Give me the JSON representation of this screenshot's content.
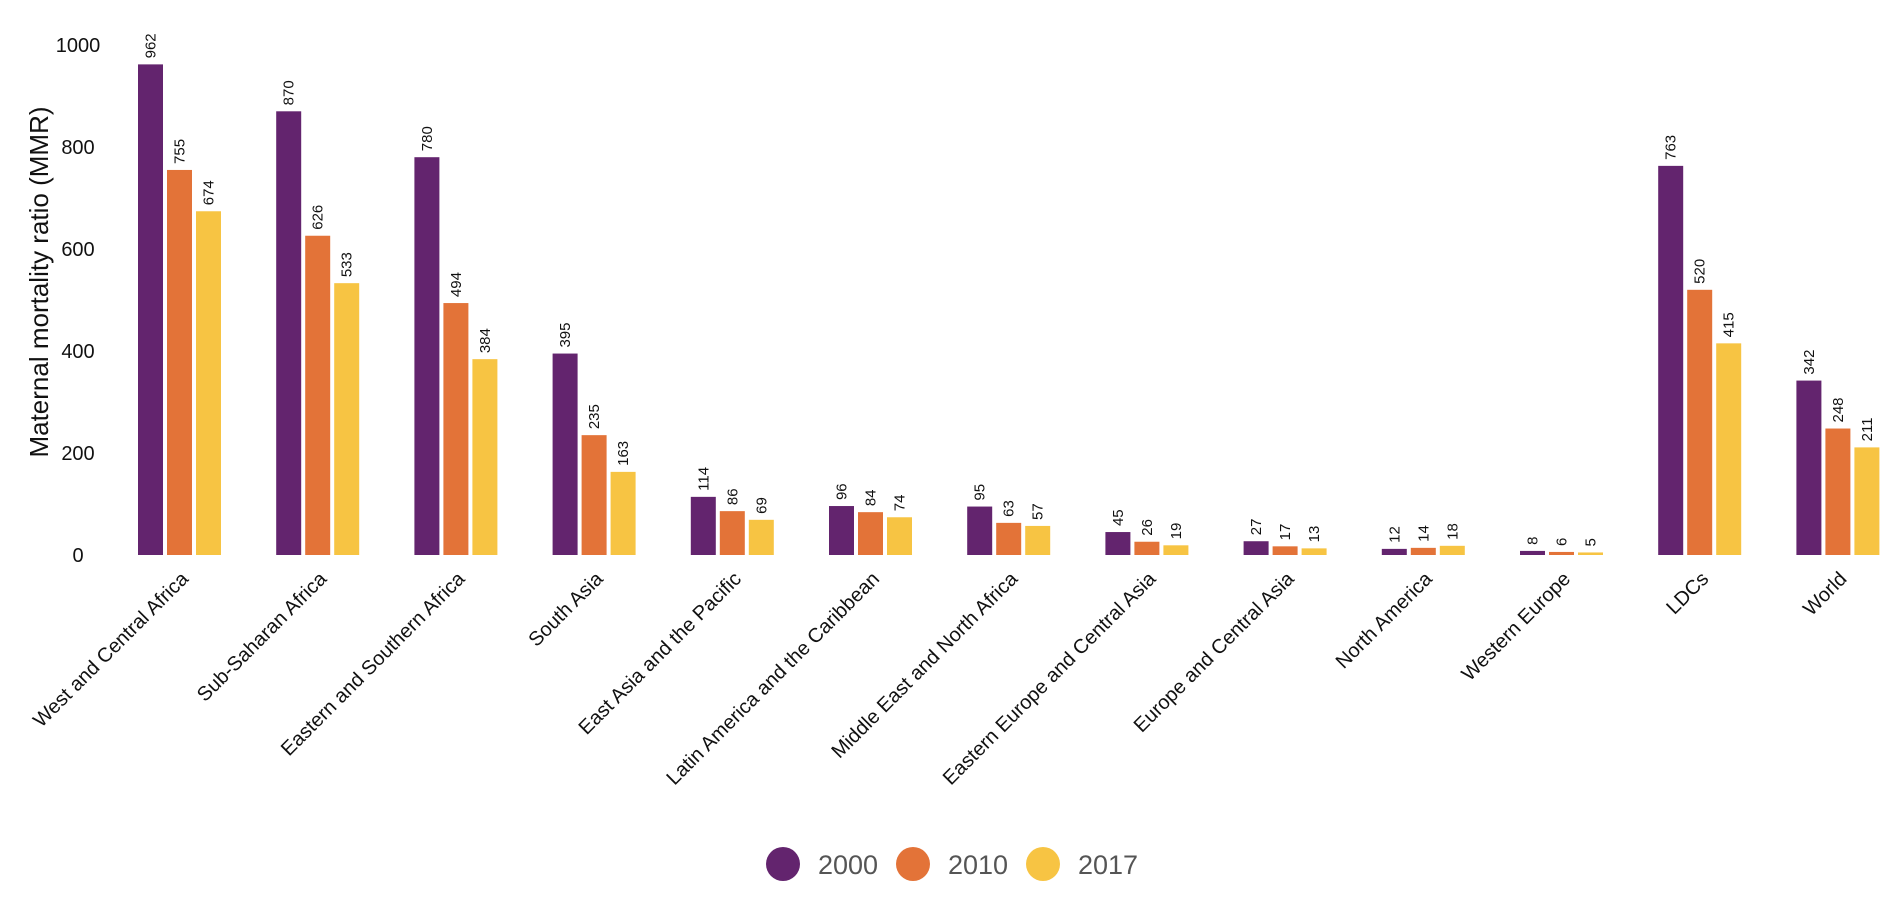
{
  "chart_data": {
    "type": "bar",
    "title": "",
    "xlabel": "",
    "ylabel": "Maternal mortality ratio (MMR)",
    "ylim": [
      0,
      1000
    ],
    "yticks": [
      0,
      200,
      400,
      600,
      800,
      1000
    ],
    "grid": false,
    "legend_position": "bottom-center",
    "categories": [
      "West and Central Africa",
      "Sub-Saharan Africa",
      "Eastern and Southern Africa",
      "South Asia",
      "East Asia and the Pacific",
      "Latin America and the Caribbean",
      "Middle East and North Africa",
      "Eastern Europe and Central Asia",
      "Europe and Central Asia",
      "North America",
      "Western Europe",
      "LDCs",
      "World"
    ],
    "series": [
      {
        "name": "2000",
        "color": "#63246e",
        "values": [
          962,
          870,
          780,
          395,
          114,
          96,
          95,
          45,
          27,
          12,
          8,
          763,
          342
        ]
      },
      {
        "name": "2010",
        "color": "#e37338",
        "values": [
          755,
          626,
          494,
          235,
          86,
          84,
          63,
          26,
          17,
          14,
          6,
          520,
          248
        ]
      },
      {
        "name": "2017",
        "color": "#f7c443",
        "values": [
          674,
          533,
          384,
          163,
          69,
          74,
          57,
          19,
          13,
          18,
          5,
          415,
          211
        ]
      }
    ]
  }
}
